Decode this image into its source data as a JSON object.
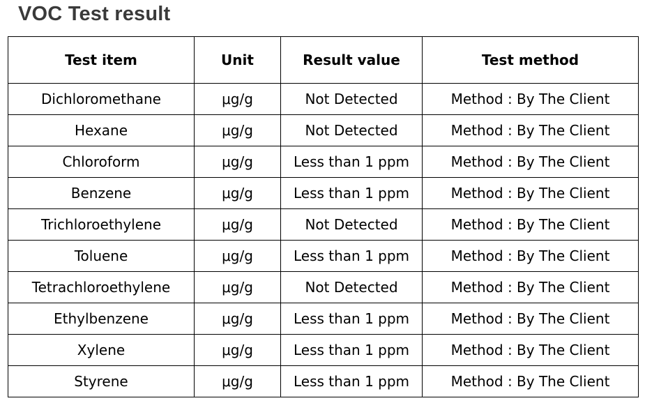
{
  "title": "VOC Test result",
  "table": {
    "headers": [
      "Test item",
      "Unit",
      "Result value",
      "Test method"
    ],
    "rows": [
      [
        "Dichloromethane",
        "μg/g",
        "Not Detected",
        "Method : By The Client"
      ],
      [
        "Hexane",
        "μg/g",
        "Not Detected",
        "Method : By The Client"
      ],
      [
        "Chloroform",
        "μg/g",
        "Less than 1 ppm",
        "Method : By The Client"
      ],
      [
        "Benzene",
        "μg/g",
        "Less than 1 ppm",
        "Method : By The Client"
      ],
      [
        "Trichloroethylene",
        "μg/g",
        "Not Detected",
        "Method : By The Client"
      ],
      [
        "Toluene",
        "μg/g",
        "Less than 1 ppm",
        "Method : By The Client"
      ],
      [
        "Tetrachloroethylene",
        "μg/g",
        "Not Detected",
        "Method : By The Client"
      ],
      [
        "Ethylbenzene",
        "μg/g",
        "Less than 1 ppm",
        "Method : By The Client"
      ],
      [
        "Xylene",
        "μg/g",
        "Less than 1 ppm",
        "Method : By The Client"
      ],
      [
        "Styrene",
        "μg/g",
        "Less than 1 ppm",
        "Method : By The Client"
      ]
    ]
  }
}
